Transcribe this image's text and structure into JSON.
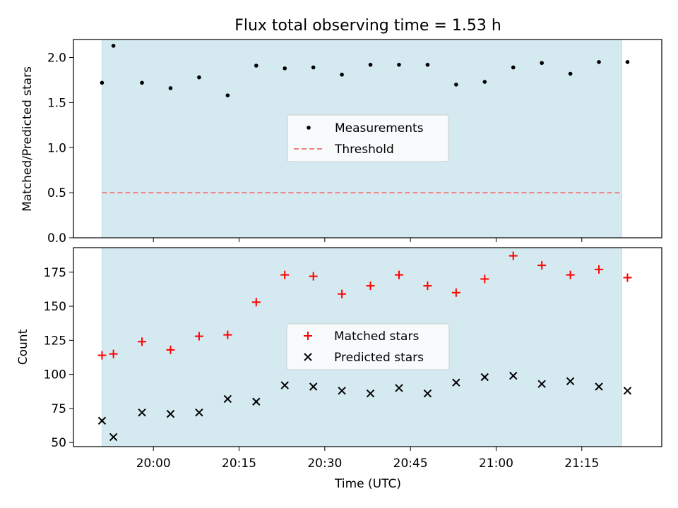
{
  "chart_data": [
    {
      "type": "scatter",
      "title": "Flux total observing time = 1.53 h",
      "xlabel": "",
      "ylabel": "Matched/Predicted stars",
      "ylim": [
        0,
        2.2
      ],
      "yticks": [
        0.0,
        0.5,
        1.0,
        1.5,
        2.0
      ],
      "ytick_labels": [
        "0.0",
        "0.5",
        "1.0",
        "1.5",
        "2.0"
      ],
      "x_unit": "time (HH:MM UTC)",
      "xlim": [
        "19:46",
        "21:29"
      ],
      "shaded_span": [
        "19:51",
        "21:22"
      ],
      "shade_color": "#d4eaf0",
      "threshold_value": 0.5,
      "threshold_color": "#f08080",
      "legend_position": "center",
      "series": [
        {
          "name": "Measurements",
          "marker": "dot",
          "color": "#000000",
          "points": [
            [
              "19:51",
              1.72
            ],
            [
              "19:53",
              2.13
            ],
            [
              "19:58",
              1.72
            ],
            [
              "20:03",
              1.66
            ],
            [
              "20:08",
              1.78
            ],
            [
              "20:13",
              1.58
            ],
            [
              "20:18",
              1.91
            ],
            [
              "20:23",
              1.88
            ],
            [
              "20:28",
              1.89
            ],
            [
              "20:33",
              1.81
            ],
            [
              "20:38",
              1.92
            ],
            [
              "20:43",
              1.92
            ],
            [
              "20:48",
              1.92
            ],
            [
              "20:53",
              1.7
            ],
            [
              "20:58",
              1.73
            ],
            [
              "21:03",
              1.89
            ],
            [
              "21:08",
              1.94
            ],
            [
              "21:13",
              1.82
            ],
            [
              "21:18",
              1.95
            ],
            [
              "21:23",
              1.95
            ]
          ]
        },
        {
          "name": "Threshold",
          "style": "dashed",
          "color": "#f08080",
          "points": [
            [
              "19:51",
              0.5
            ],
            [
              "21:22",
              0.5
            ]
          ]
        }
      ]
    },
    {
      "type": "scatter",
      "title": "",
      "xlabel": "Time (UTC)",
      "ylabel": "Count",
      "ylim": [
        47,
        193
      ],
      "yticks": [
        50,
        75,
        100,
        125,
        150,
        175
      ],
      "ytick_labels": [
        "50",
        "75",
        "100",
        "125",
        "150",
        "175"
      ],
      "xticks": [
        "20:00",
        "20:15",
        "20:30",
        "20:45",
        "21:00",
        "21:15"
      ],
      "xtick_labels": [
        "20:00",
        "20:15",
        "20:30",
        "20:45",
        "21:00",
        "21:15"
      ],
      "xlim": [
        "19:46",
        "21:29"
      ],
      "shaded_span": [
        "19:51",
        "21:22"
      ],
      "shade_color": "#d4eaf0",
      "legend_position": "center",
      "series": [
        {
          "name": "Matched stars",
          "marker": "plus",
          "color": "#ff0000",
          "points": [
            [
              "19:51",
              114
            ],
            [
              "19:53",
              115
            ],
            [
              "19:58",
              124
            ],
            [
              "20:03",
              118
            ],
            [
              "20:08",
              128
            ],
            [
              "20:13",
              129
            ],
            [
              "20:18",
              153
            ],
            [
              "20:23",
              173
            ],
            [
              "20:28",
              172
            ],
            [
              "20:33",
              159
            ],
            [
              "20:38",
              165
            ],
            [
              "20:43",
              173
            ],
            [
              "20:48",
              165
            ],
            [
              "20:53",
              160
            ],
            [
              "20:58",
              170
            ],
            [
              "21:03",
              187
            ],
            [
              "21:08",
              180
            ],
            [
              "21:13",
              173
            ],
            [
              "21:18",
              177
            ],
            [
              "21:23",
              171
            ]
          ]
        },
        {
          "name": "Predicted stars",
          "marker": "x",
          "color": "#000000",
          "points": [
            [
              "19:51",
              66
            ],
            [
              "19:53",
              54
            ],
            [
              "19:58",
              72
            ],
            [
              "20:03",
              71
            ],
            [
              "20:08",
              72
            ],
            [
              "20:13",
              82
            ],
            [
              "20:18",
              80
            ],
            [
              "20:23",
              92
            ],
            [
              "20:28",
              91
            ],
            [
              "20:33",
              88
            ],
            [
              "20:38",
              86
            ],
            [
              "20:43",
              90
            ],
            [
              "20:48",
              86
            ],
            [
              "20:53",
              94
            ],
            [
              "20:58",
              98
            ],
            [
              "21:03",
              99
            ],
            [
              "21:08",
              93
            ],
            [
              "21:13",
              95
            ],
            [
              "21:18",
              91
            ],
            [
              "21:23",
              88
            ]
          ]
        }
      ]
    }
  ]
}
